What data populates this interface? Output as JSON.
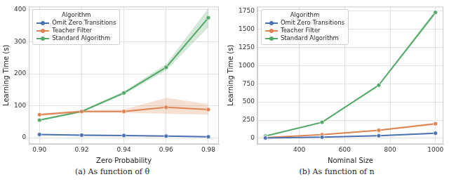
{
  "chart_data": [
    {
      "type": "line",
      "caption": "(a) As function of θ",
      "x_label": "Zero Probability",
      "y_label": "Learning Time (s)",
      "legend": "upper left",
      "legend_title": "Algorithm",
      "grid": true,
      "marker": "circle",
      "x": [
        0.9,
        0.92,
        0.94,
        0.96,
        0.98
      ],
      "xlim": [
        0.895,
        0.985
      ],
      "xticks": [
        {
          "value": 0.9,
          "label": "0.90"
        },
        {
          "value": 0.92,
          "label": "0.92"
        },
        {
          "value": 0.94,
          "label": "0.94"
        },
        {
          "value": 0.96,
          "label": "0.96"
        },
        {
          "value": 0.98,
          "label": "0.98"
        }
      ],
      "ylim": [
        -20,
        410
      ],
      "yticks": [
        0,
        100,
        200,
        300,
        400
      ],
      "series": [
        {
          "name": "Omit Zero Transitions",
          "color": "#4c72b0",
          "values": [
            10,
            8,
            7,
            5,
            3
          ],
          "ci_low": [
            8,
            6,
            5,
            3,
            2
          ],
          "ci_high": [
            12,
            10,
            9,
            7,
            4
          ]
        },
        {
          "name": "Teacher Filter",
          "color": "#dd8452",
          "values": [
            72,
            82,
            82,
            95,
            88
          ],
          "ci_low": [
            68,
            78,
            78,
            75,
            72
          ],
          "ci_high": [
            76,
            86,
            88,
            125,
            105
          ]
        },
        {
          "name": "Standard Algorithm",
          "color": "#55a868",
          "values": [
            55,
            82,
            140,
            220,
            375
          ],
          "ci_low": [
            52,
            79,
            135,
            210,
            345
          ],
          "ci_high": [
            58,
            85,
            145,
            230,
            405
          ]
        }
      ]
    },
    {
      "type": "line",
      "caption": "(b) As function of n",
      "x_label": "Nominal Size",
      "y_label": "Learning Time (s)",
      "legend": "upper left",
      "legend_title": "Algorithm",
      "grid": true,
      "marker": "circle",
      "x": [
        250,
        500,
        750,
        1000
      ],
      "xlim": [
        215,
        1035
      ],
      "xticks": [
        400,
        600,
        800,
        1000
      ],
      "ylim": [
        -80,
        1810
      ],
      "yticks": [
        0,
        250,
        500,
        750,
        1000,
        1250,
        1500,
        1750
      ],
      "series": [
        {
          "name": "Omit Zero Transitions",
          "color": "#4c72b0",
          "values": [
            5,
            15,
            35,
            70
          ],
          "ci_low": [
            4,
            12,
            30,
            62
          ],
          "ci_high": [
            6,
            18,
            40,
            78
          ]
        },
        {
          "name": "Teacher Filter",
          "color": "#dd8452",
          "values": [
            10,
            50,
            110,
            200
          ],
          "ci_low": [
            8,
            45,
            100,
            185
          ],
          "ci_high": [
            12,
            55,
            120,
            215
          ]
        },
        {
          "name": "Standard Algorithm",
          "color": "#55a868",
          "values": [
            30,
            220,
            730,
            1730
          ],
          "ci_low": [
            25,
            210,
            715,
            1700
          ],
          "ci_high": [
            35,
            230,
            745,
            1760
          ]
        }
      ]
    }
  ]
}
